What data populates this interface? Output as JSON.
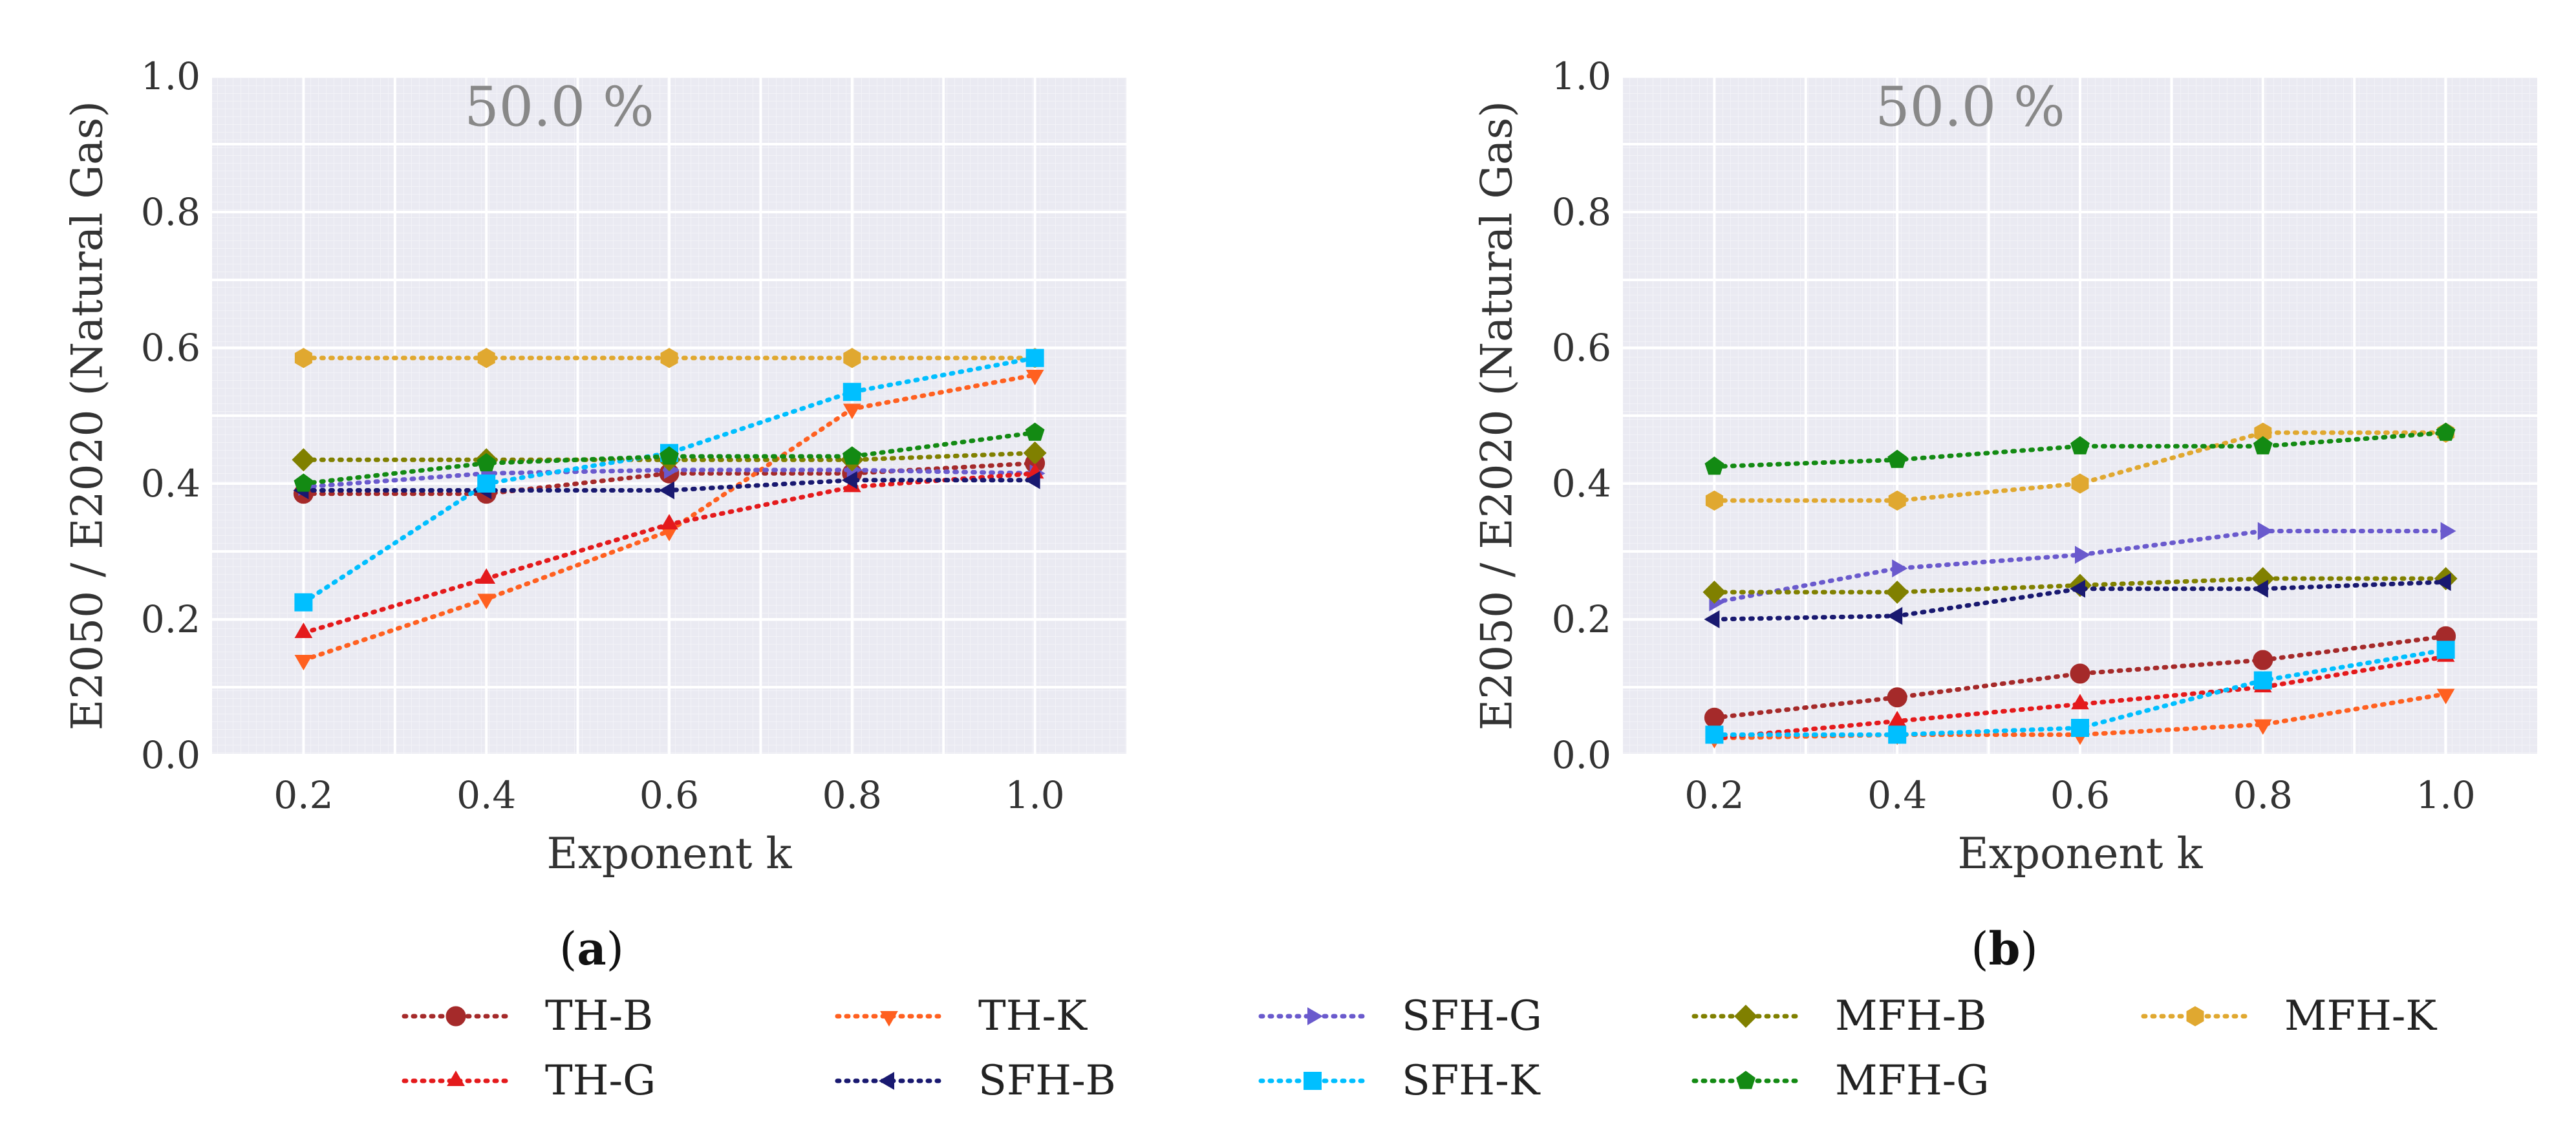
{
  "figure": {
    "legend": {
      "placement": "bottom-center",
      "rows": [
        [
          "TH-B",
          "TH-K",
          "SFH-G",
          "MFH-B",
          "MFH-K"
        ],
        [
          "TH-G",
          "SFH-B",
          "SFH-K",
          "MFH-G"
        ]
      ]
    }
  },
  "series_styles": {
    "TH-B": {
      "color": "#A52A2A",
      "marker": "circle"
    },
    "TH-G": {
      "color": "#E41A1C",
      "marker": "triangle-up"
    },
    "TH-K": {
      "color": "#FF6020",
      "marker": "triangle-down"
    },
    "SFH-B": {
      "color": "#191970",
      "marker": "triangle-left"
    },
    "SFH-G": {
      "color": "#6A5ACD",
      "marker": "triangle-right"
    },
    "SFH-K": {
      "color": "#00BFFF",
      "marker": "square"
    },
    "MFH-B": {
      "color": "#808000",
      "marker": "diamond"
    },
    "MFH-G": {
      "color": "#138A13",
      "marker": "pentagon"
    },
    "MFH-K": {
      "color": "#E0A830",
      "marker": "hexagon"
    }
  },
  "chart_data": [
    {
      "type": "line",
      "panel_label": "a",
      "annotation": "50.0 %",
      "xlabel": "Exponent k",
      "ylabel": "E2050 / E2020 (Natural Gas)",
      "x": [
        0.2,
        0.4,
        0.6,
        0.8,
        1.0
      ],
      "xticks": [
        "0.2",
        "0.4",
        "0.6",
        "0.8",
        "1.0"
      ],
      "yticks": [
        "0.0",
        "0.2",
        "0.4",
        "0.6",
        "0.8",
        "1.0"
      ],
      "xlim": [
        0.1,
        1.1
      ],
      "ylim": [
        0.0,
        1.0
      ],
      "grid": true,
      "series": [
        {
          "name": "TH-B",
          "values": [
            0.385,
            0.385,
            0.415,
            0.415,
            0.43
          ]
        },
        {
          "name": "TH-K",
          "values": [
            0.14,
            0.23,
            0.33,
            0.51,
            0.56
          ]
        },
        {
          "name": "SFH-G",
          "values": [
            0.395,
            0.415,
            0.42,
            0.42,
            0.415
          ]
        },
        {
          "name": "MFH-B",
          "values": [
            0.435,
            0.435,
            0.435,
            0.435,
            0.445
          ]
        },
        {
          "name": "MFH-K",
          "values": [
            0.585,
            0.585,
            0.585,
            0.585,
            0.585
          ]
        },
        {
          "name": "TH-G",
          "values": [
            0.18,
            0.26,
            0.34,
            0.395,
            0.415
          ]
        },
        {
          "name": "SFH-B",
          "values": [
            0.39,
            0.39,
            0.39,
            0.405,
            0.405
          ]
        },
        {
          "name": "SFH-K",
          "values": [
            0.225,
            0.4,
            0.445,
            0.535,
            0.585
          ]
        },
        {
          "name": "MFH-G",
          "values": [
            0.4,
            0.43,
            0.44,
            0.44,
            0.475
          ]
        }
      ]
    },
    {
      "type": "line",
      "panel_label": "b",
      "annotation": "50.0 %",
      "xlabel": "Exponent k",
      "ylabel": "E2050 / E2020 (Natural Gas)",
      "x": [
        0.2,
        0.4,
        0.6,
        0.8,
        1.0
      ],
      "xticks": [
        "0.2",
        "0.4",
        "0.6",
        "0.8",
        "1.0"
      ],
      "yticks": [
        "0.0",
        "0.2",
        "0.4",
        "0.6",
        "0.8",
        "1.0"
      ],
      "xlim": [
        0.1,
        1.1
      ],
      "ylim": [
        0.0,
        1.0
      ],
      "grid": true,
      "series": [
        {
          "name": "TH-B",
          "values": [
            0.055,
            0.085,
            0.12,
            0.14,
            0.175
          ]
        },
        {
          "name": "TH-K",
          "values": [
            0.025,
            0.03,
            0.03,
            0.045,
            0.09
          ]
        },
        {
          "name": "SFH-G",
          "values": [
            0.225,
            0.275,
            0.295,
            0.33,
            0.33
          ]
        },
        {
          "name": "MFH-B",
          "values": [
            0.24,
            0.24,
            0.25,
            0.26,
            0.26
          ]
        },
        {
          "name": "MFH-K",
          "values": [
            0.375,
            0.375,
            0.4,
            0.475,
            0.475
          ]
        },
        {
          "name": "TH-G",
          "values": [
            0.025,
            0.05,
            0.075,
            0.1,
            0.145
          ]
        },
        {
          "name": "SFH-B",
          "values": [
            0.2,
            0.205,
            0.245,
            0.245,
            0.255
          ]
        },
        {
          "name": "SFH-K",
          "values": [
            0.03,
            0.03,
            0.04,
            0.11,
            0.155
          ]
        },
        {
          "name": "MFH-G",
          "values": [
            0.425,
            0.435,
            0.455,
            0.455,
            0.475
          ]
        }
      ]
    }
  ]
}
